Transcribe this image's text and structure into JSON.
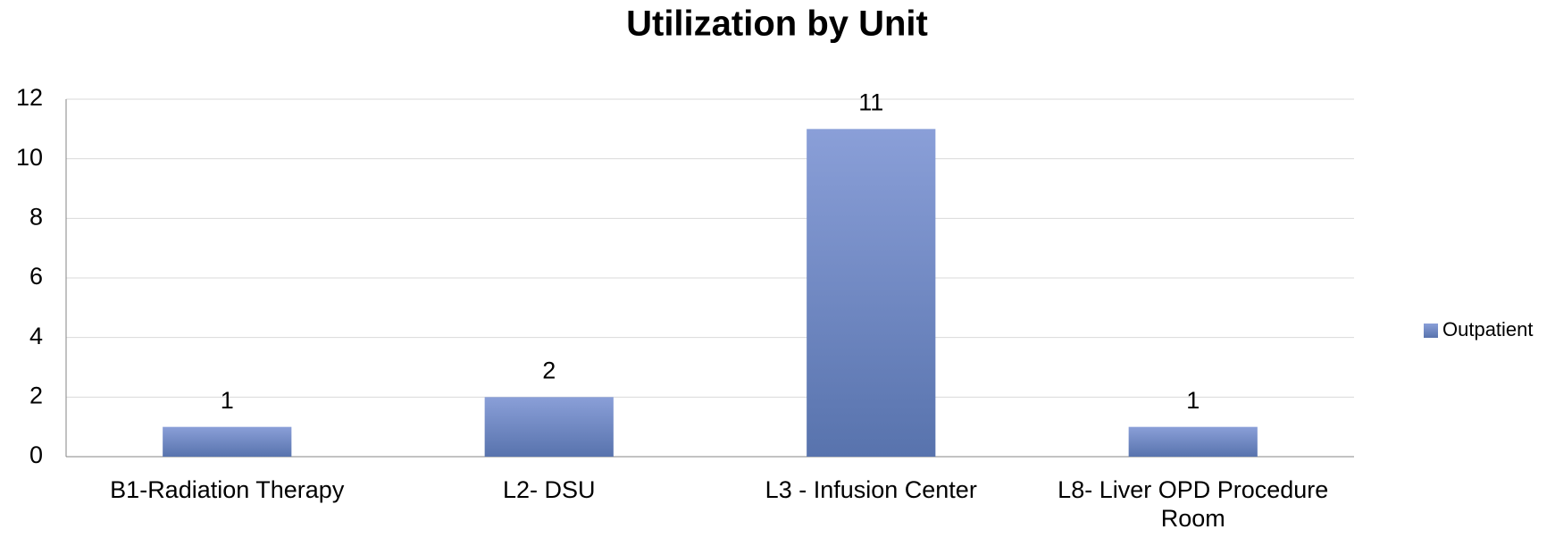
{
  "chart_data": {
    "type": "bar",
    "title": "Utilization by Unit",
    "categories": [
      "B1-Radiation Therapy",
      "L2- DSU",
      "L3 - Infusion Center",
      "L8- Liver OPD Procedure Room"
    ],
    "series": [
      {
        "name": "Outpatient",
        "color": "#6a84c0",
        "values": [
          1,
          2,
          11,
          1
        ]
      }
    ],
    "ylim": [
      0,
      12
    ],
    "yticks": [
      0,
      2,
      4,
      6,
      8,
      10,
      12
    ],
    "grid": true,
    "legend": "right"
  }
}
